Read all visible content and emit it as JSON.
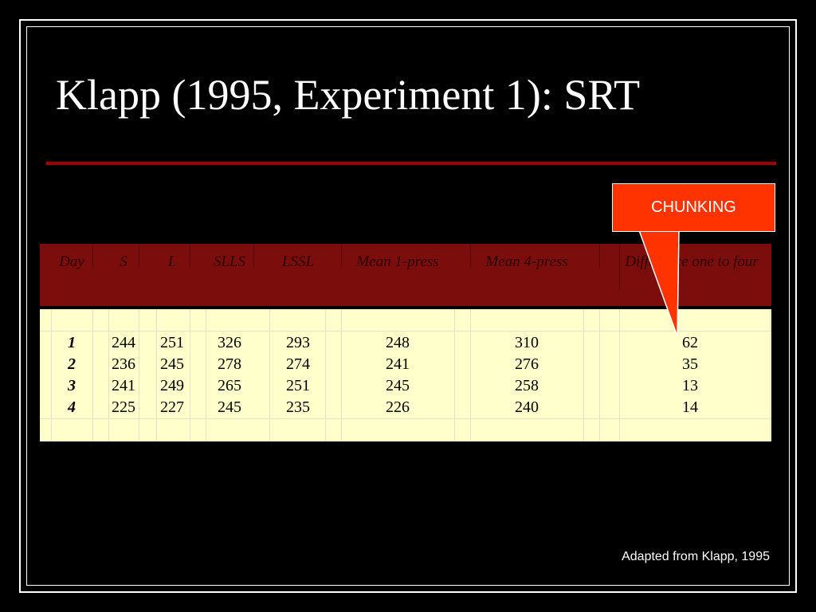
{
  "slide": {
    "title": "Klapp (1995, Experiment 1): SRT",
    "callout_label": "CHUNKING",
    "footer": "Adapted from Klapp, 1995",
    "colors": {
      "background": "#000000",
      "divider": "#a00000",
      "header_bg": "#7b0d0d",
      "body_bg": "#ffffcc",
      "callout": "#ff3300"
    }
  },
  "table": {
    "headers": [
      "Day",
      "S",
      "L",
      "SLLS",
      "LSSL",
      "Mean 1-press",
      "Mean 4-press",
      "Difference one to four"
    ],
    "rows": [
      [
        "1",
        "244",
        "251",
        "326",
        "293",
        "248",
        "310",
        "62"
      ],
      [
        "2",
        "236",
        "245",
        "278",
        "274",
        "241",
        "276",
        "35"
      ],
      [
        "3",
        "241",
        "249",
        "265",
        "251",
        "245",
        "258",
        "13"
      ],
      [
        "4",
        "225",
        "227",
        "245",
        "235",
        "226",
        "240",
        "14"
      ]
    ]
  }
}
